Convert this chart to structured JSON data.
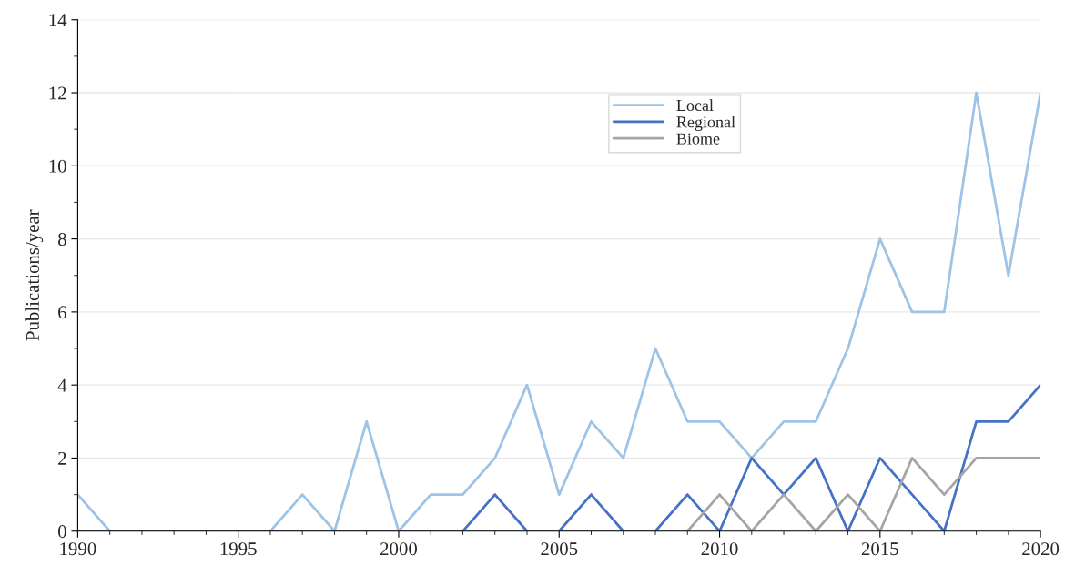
{
  "chart_data": {
    "type": "line",
    "ylabel": "Publications/year",
    "x": [
      1990,
      1991,
      1992,
      1993,
      1994,
      1995,
      1996,
      1997,
      1998,
      1999,
      2000,
      2001,
      2002,
      2003,
      2004,
      2005,
      2006,
      2007,
      2008,
      2009,
      2010,
      2011,
      2012,
      2013,
      2014,
      2015,
      2016,
      2017,
      2018,
      2019,
      2020
    ],
    "series": [
      {
        "name": "Local",
        "color": "#9dc3e6",
        "values": [
          1,
          0,
          0,
          0,
          0,
          0,
          0,
          1,
          0,
          3,
          0,
          1,
          1,
          2,
          4,
          1,
          3,
          2,
          5,
          3,
          3,
          2,
          3,
          3,
          5,
          8,
          6,
          6,
          12,
          7,
          12
        ]
      },
      {
        "name": "Regional",
        "color": "#4472c4",
        "values": [
          0,
          0,
          0,
          0,
          0,
          0,
          0,
          0,
          0,
          0,
          0,
          0,
          0,
          1,
          0,
          0,
          1,
          0,
          0,
          1,
          0,
          2,
          1,
          2,
          0,
          2,
          1,
          0,
          3,
          3,
          4
        ]
      },
      {
        "name": "Biome",
        "color": "#a5a5a5",
        "values": [
          0,
          0,
          0,
          0,
          0,
          0,
          0,
          0,
          0,
          0,
          0,
          0,
          0,
          0,
          0,
          0,
          0,
          0,
          0,
          0,
          1,
          0,
          1,
          0,
          1,
          0,
          2,
          1,
          2,
          2,
          2
        ]
      }
    ],
    "xlim": [
      1990,
      2020
    ],
    "xticks": [
      1990,
      1995,
      2000,
      2005,
      2010,
      2015,
      2020
    ],
    "ylim": [
      0,
      14
    ],
    "yticks": [
      0,
      2,
      4,
      6,
      8,
      10,
      12,
      14
    ],
    "grid": "y",
    "legend": "top",
    "marker": "none",
    "line_style": "solid"
  }
}
